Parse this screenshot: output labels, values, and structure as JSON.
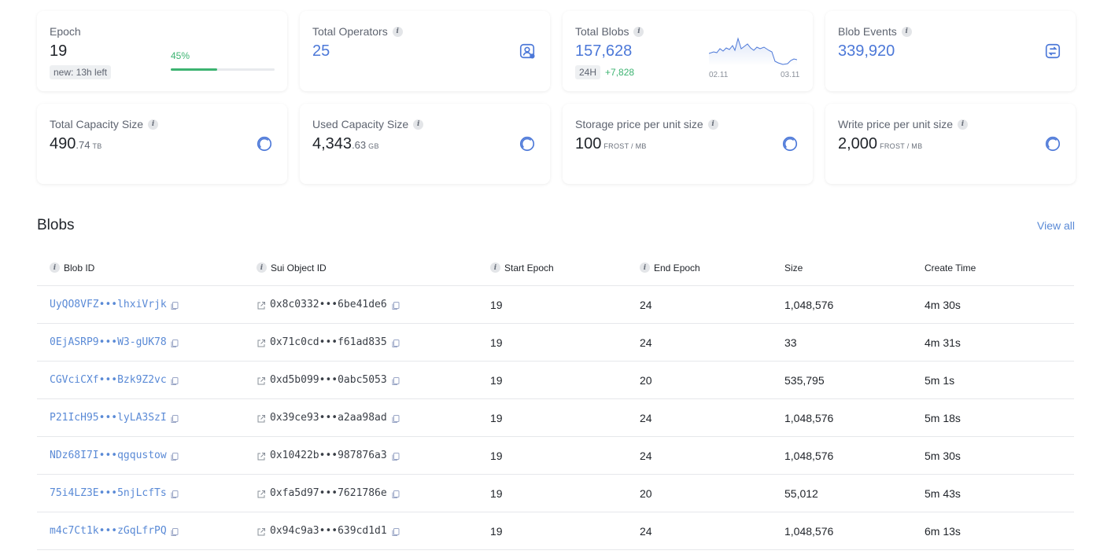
{
  "cards": {
    "epoch": {
      "label": "Epoch",
      "value": "19",
      "badge": "new: 13h left",
      "progress_label": "45%",
      "progress": 0.45
    },
    "operators": {
      "label": "Total Operators",
      "value": "25",
      "icon": "user-badge-icon"
    },
    "blobs": {
      "label": "Total Blobs",
      "value": "157,628",
      "period": "24H",
      "delta": "+7,828",
      "spark_start": "02.11",
      "spark_end": "03.11"
    },
    "events": {
      "label": "Blob Events",
      "value": "339,920",
      "icon": "exchange-icon"
    },
    "total_capacity": {
      "label": "Total Capacity Size",
      "value": "490",
      "fraction": ".74",
      "unit": "TB",
      "icon": "pie-icon"
    },
    "used_capacity": {
      "label": "Used Capacity Size",
      "value": "4,343",
      "fraction": ".63",
      "unit": "GB",
      "icon": "pie-icon"
    },
    "storage_price": {
      "label": "Storage price per unit size",
      "value": "100",
      "unit": "FROST / MB",
      "icon": "pie-icon"
    },
    "write_price": {
      "label": "Write price per unit size",
      "value": "2,000",
      "unit": "FROST / MB",
      "icon": "pie-icon"
    }
  },
  "blobs_section": {
    "title": "Blobs",
    "view_all": "View all",
    "columns": [
      "Blob ID",
      "Sui Object ID",
      "Start Epoch",
      "End Epoch",
      "Size",
      "Create Time"
    ],
    "rows": [
      {
        "blob_id": "UyQO8VFZ•••lhxiVrjk",
        "object_id": "0x8c0332•••6be41de6",
        "start": "19",
        "end": "24",
        "size": "1,048,576",
        "time": "4m 30s"
      },
      {
        "blob_id": "0EjASRP9•••W3-gUK78",
        "object_id": "0x71c0cd•••f61ad835",
        "start": "19",
        "end": "24",
        "size": "33",
        "time": "4m 31s"
      },
      {
        "blob_id": "CGVciCXf•••Bzk9Z2vc",
        "object_id": "0xd5b099•••0abc5053",
        "start": "19",
        "end": "20",
        "size": "535,795",
        "time": "5m 1s"
      },
      {
        "blob_id": "P21IcH95•••lyLA3SzI",
        "object_id": "0x39ce93•••a2aa98ad",
        "start": "19",
        "end": "24",
        "size": "1,048,576",
        "time": "5m 18s"
      },
      {
        "blob_id": "NDz68I7I•••qgqustow",
        "object_id": "0x10422b•••987876a3",
        "start": "19",
        "end": "24",
        "size": "1,048,576",
        "time": "5m 30s"
      },
      {
        "blob_id": "75i4LZ3E•••5njLcfTs",
        "object_id": "0xfa5d97•••7621786e",
        "start": "19",
        "end": "20",
        "size": "55,012",
        "time": "5m 43s"
      },
      {
        "blob_id": "m4c7Ct1k•••zGqLfrPQ",
        "object_id": "0x94c9a3•••639cd1d1",
        "start": "19",
        "end": "24",
        "size": "1,048,576",
        "time": "6m 13s"
      }
    ]
  },
  "colors": {
    "accent": "#4c78d8",
    "link": "#5a8ad6",
    "positive": "#3cb371"
  }
}
